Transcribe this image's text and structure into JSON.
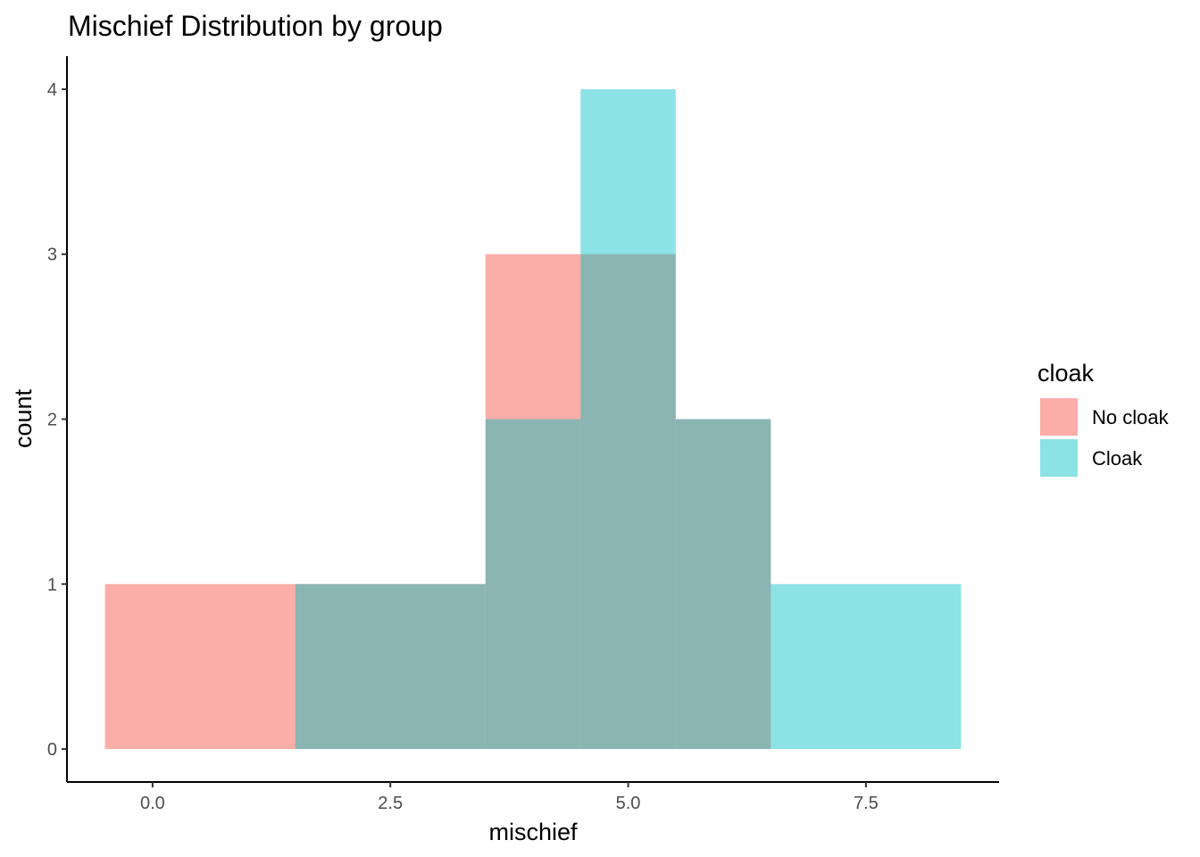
{
  "chart_data": {
    "type": "histogram",
    "title": "Mischief Distribution by group",
    "xlabel": "mischief",
    "ylabel": "count",
    "xlim": [
      -0.9,
      8.9
    ],
    "ylim": [
      -0.2,
      4.2
    ],
    "x_ticks": [
      0,
      2.5,
      5,
      7.5
    ],
    "x_tick_labels": [
      "0.0",
      "2.5",
      "5.0",
      "7.5"
    ],
    "y_ticks": [
      0,
      1,
      2,
      3,
      4
    ],
    "y_tick_labels": [
      "0",
      "1",
      "2",
      "3",
      "4"
    ],
    "bin_width": 2,
    "grid": false,
    "legend": {
      "title": "cloak",
      "position": "right"
    },
    "series": [
      {
        "name": "No cloak",
        "color": "#F8766D",
        "opacity": 0.6,
        "bins": [
          {
            "xmin": -0.5,
            "xmax": 1.5,
            "count": 1
          },
          {
            "xmin": 1.5,
            "xmax": 3.5,
            "count": 1
          },
          {
            "xmin": 3.5,
            "xmax": 4.5,
            "count": 3
          },
          {
            "xmin": 4.5,
            "xmax": 5.5,
            "count": 3
          },
          {
            "xmin": 5.5,
            "xmax": 6.5,
            "count": 2
          }
        ]
      },
      {
        "name": "Cloak",
        "color": "#00BFC4",
        "opacity": 0.45,
        "bins": [
          {
            "xmin": 1.5,
            "xmax": 3.5,
            "count": 1
          },
          {
            "xmin": 3.5,
            "xmax": 4.5,
            "count": 2
          },
          {
            "xmin": 4.5,
            "xmax": 5.5,
            "count": 4
          },
          {
            "xmin": 5.5,
            "xmax": 6.5,
            "count": 2
          },
          {
            "xmin": 6.5,
            "xmax": 8.5,
            "count": 1
          }
        ]
      }
    ]
  }
}
